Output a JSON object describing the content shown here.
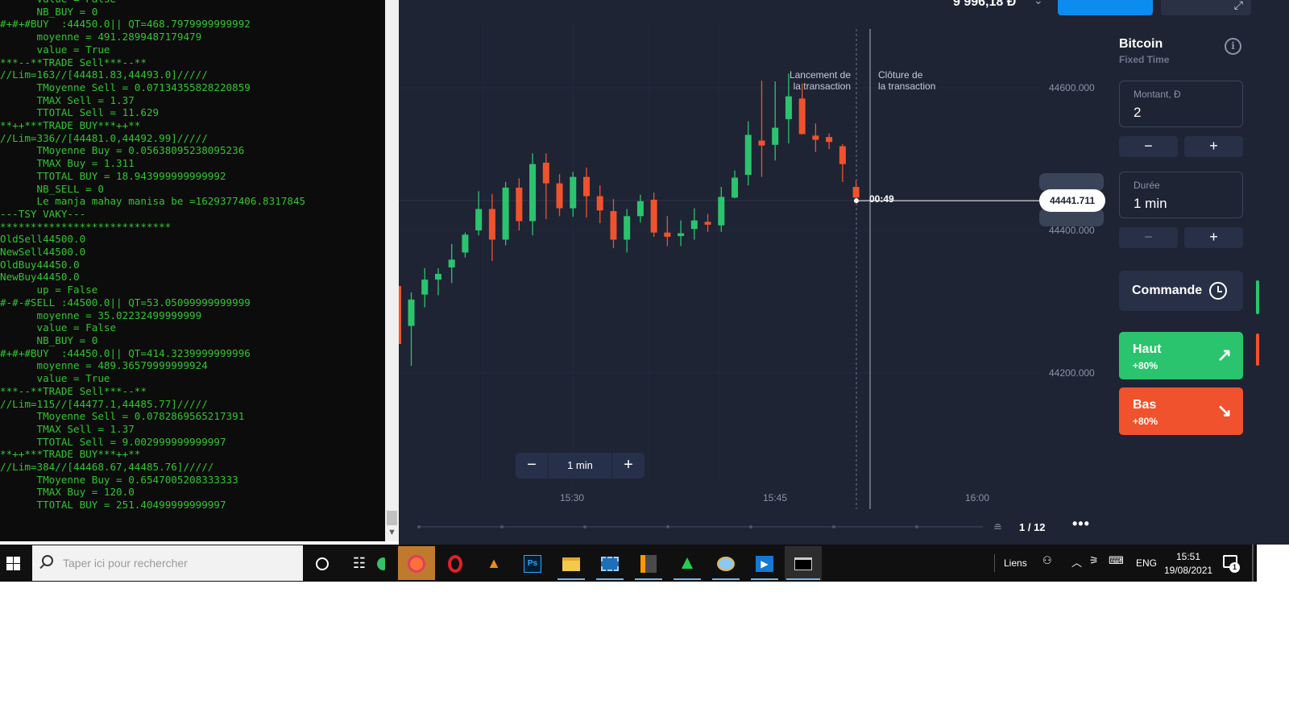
{
  "console": {
    "lines": [
      "      value = False",
      "      NB_BUY = 0",
      "#+#+#BUY  :44450.0|| QT=468.7979999999992",
      "      moyenne = 491.2899487179479",
      "      value = True",
      "***--**TRADE Sell***--**",
      "//Lim=163//[44481.83,44493.0]/////",
      "      TMoyenne Sell = 0.07134355828220859",
      "      TMAX Sell = 1.37",
      "      TTOTAL Sell = 11.629",
      "**++***TRADE BUY***++**",
      "//Lim=336//[44481.0,44492.99]/////",
      "      TMoyenne Buy = 0.05638095238095236",
      "      TMAX Buy = 1.311",
      "      TTOTAL BUY = 18.943999999999992",
      "      NB_SELL = 0",
      "      Le manja mahay manisa be =1629377406.8317845",
      "---TSY VAKY---",
      "****************************",
      "OldSell44500.0",
      "NewSell44500.0",
      "OldBuy44450.0",
      "NewBuy44450.0",
      "      up = False",
      "#-#-#SELL :44500.0|| QT=53.05099999999999",
      "      moyenne = 35.02232499999999",
      "      value = False",
      "      NB_BUY = 0",
      "#+#+#BUY  :44450.0|| QT=414.3239999999996",
      "      moyenne = 489.36579999999924",
      "      value = True",
      "***--**TRADE Sell***--**",
      "//Lim=115//[44477.1,44485.77]/////",
      "      TMoyenne Sell = 0.0782869565217391",
      "      TMAX Sell = 1.37",
      "      TTOTAL Sell = 9.002999999999997",
      "**++***TRADE BUY***++**",
      "//Lim=384//[44468.67,44485.76]/////",
      "      TMoyenne Buy = 0.6547005208333333",
      "      TMAX Buy = 120.0",
      "      TTOTAL BUY = 251.40499999999997"
    ]
  },
  "header": {
    "balance": "9 996,18 Đ",
    "chevron_icon": "chevron-down-icon",
    "expand_icon": "expand-arrows-icon"
  },
  "chart": {
    "launch_label_1": "Lancement de",
    "launch_label_2": "la transaction",
    "close_label_1": "Clôture de",
    "close_label_2": "la transaction",
    "countdown": "00:49",
    "current_price": "44441.711",
    "zoom": {
      "minus": "−",
      "value": "1 min",
      "plus": "+"
    },
    "pagination": "1 / 12",
    "more_icon": "•••",
    "colors": {
      "bull": "#2bc46e",
      "bear": "#f0522d",
      "background": "#1e2434"
    }
  },
  "chart_data": {
    "type": "candlestick",
    "title": "",
    "xlabel": "",
    "ylabel": "",
    "x_ticks": [
      "15:30",
      "15:45",
      "16:00"
    ],
    "y_ticks": [
      "44600.000",
      "44400.000",
      "44200.000"
    ],
    "y_tick_values": [
      44600,
      44400,
      44200
    ],
    "ylim": [
      44000,
      44700
    ],
    "grid": true,
    "current_price": 44441.711,
    "candles": [
      [
        44266,
        44303,
        44210,
        44313
      ],
      [
        44310,
        44331,
        44292,
        44347
      ],
      [
        44331,
        44339,
        44309,
        44347
      ],
      [
        44348,
        44359,
        44326,
        44381
      ],
      [
        44369,
        44394,
        44362,
        44397
      ],
      [
        44400,
        44430,
        44393,
        44455
      ],
      [
        44430,
        44387,
        44357,
        44451
      ],
      [
        44387,
        44460,
        44379,
        44468
      ],
      [
        44460,
        44413,
        44400,
        44473
      ],
      [
        44413,
        44493,
        44393,
        44508
      ],
      [
        44495,
        44466,
        44416,
        44508
      ],
      [
        44466,
        44431,
        44420,
        44479
      ],
      [
        44431,
        44475,
        44419,
        44482
      ],
      [
        44475,
        44448,
        44418,
        44488
      ],
      [
        44448,
        44428,
        44410,
        44463
      ],
      [
        44427,
        44387,
        44375,
        44444
      ],
      [
        44387,
        44420,
        44369,
        44430
      ],
      [
        44420,
        44441,
        44411,
        44450
      ],
      [
        44443,
        44397,
        44391,
        44453
      ],
      [
        44397,
        44391,
        44378,
        44420
      ],
      [
        44392,
        44396,
        44378,
        44414
      ],
      [
        44402,
        44414,
        44387,
        44431
      ],
      [
        44412,
        44408,
        44398,
        44423
      ],
      [
        44407,
        44447,
        44398,
        44461
      ],
      [
        44446,
        44474,
        44445,
        44484
      ],
      [
        44478,
        44534,
        44463,
        44553
      ],
      [
        44526,
        44519,
        44475,
        44610
      ],
      [
        44520,
        44544,
        44498,
        44609
      ],
      [
        44556,
        44588,
        44522,
        44620
      ],
      [
        44585,
        44535,
        44535,
        44606
      ],
      [
        44533,
        44527,
        44510,
        44550
      ],
      [
        44531,
        44524,
        44514,
        44536
      ],
      [
        44518,
        44493,
        44468,
        44521
      ],
      [
        44461,
        44446,
        44440,
        44470
      ]
    ],
    "candle_format": [
      "open",
      "close",
      "low",
      "high"
    ]
  },
  "panel": {
    "asset": "Bitcoin",
    "mode": "Fixed Time",
    "amount_label": "Montant, Đ",
    "amount_value": "2",
    "duration_label": "Durée",
    "duration_value": "1 min",
    "minus": "−",
    "plus": "+",
    "order_label": "Commande",
    "up_label": "Haut",
    "up_pct": "+80%",
    "down_label": "Bas",
    "down_pct": "+80%",
    "info_glyph": "i",
    "up_arrow": "↗",
    "down_arrow": "↘"
  },
  "taskbar": {
    "search_placeholder": "Taper ici pour rechercher",
    "apps": [
      "cortana-icon",
      "task-view-icon",
      "edge-icon",
      "firefox-icon",
      "opera-icon",
      "vlc-icon",
      "photoshop-icon",
      "file-explorer-icon",
      "video-editor-icon",
      "sublime-text-icon",
      "triangle-app-icon",
      "paint-icon",
      "media-player-icon",
      "terminal-icon"
    ],
    "links": "Liens",
    "lang": "ENG",
    "time": "15:51",
    "date": "19/08/2021",
    "notif_count": "1"
  }
}
